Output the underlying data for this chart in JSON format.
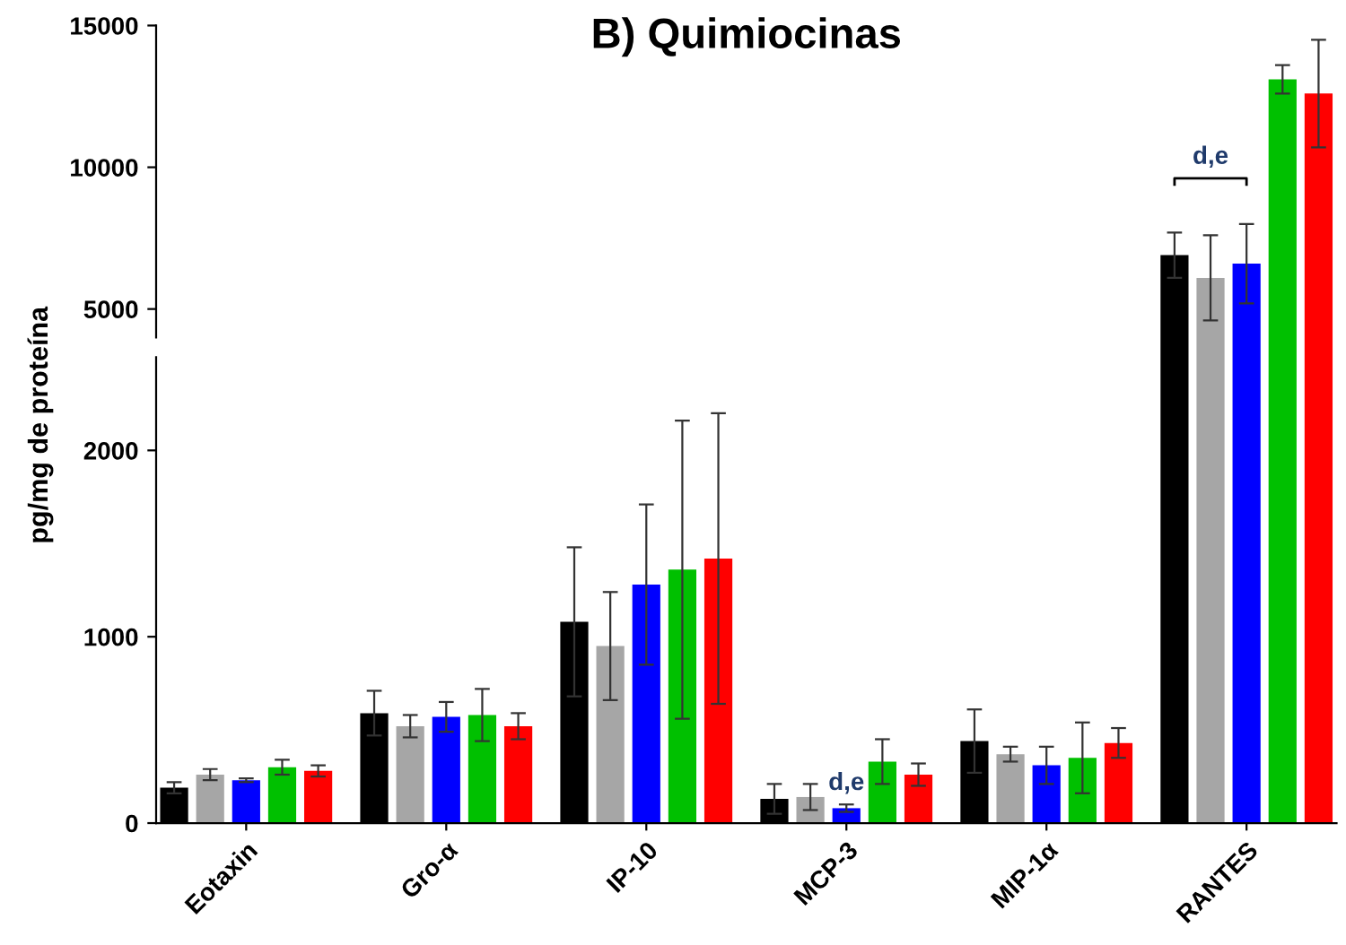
{
  "chart_data": [
    {
      "type": "bar",
      "title": "B) Quimiocinas",
      "ylabel": "pg/mg de proteína",
      "categories": [
        null,
        null,
        null,
        null,
        null,
        null
      ],
      "ylim": [
        4000,
        15000
      ],
      "yticks": [
        5000,
        10000,
        15000
      ],
      "tick_labels": "y",
      "grid": false,
      "legend": false,
      "series": [
        {
          "color": "#000000",
          "values": [
            null,
            null,
            null,
            null,
            null,
            6900
          ],
          "errors": [
            null,
            null,
            null,
            null,
            null,
            800
          ]
        },
        {
          "color": "#a6a6a6",
          "values": [
            null,
            null,
            null,
            null,
            null,
            6100
          ],
          "errors": [
            null,
            null,
            null,
            null,
            null,
            1500
          ]
        },
        {
          "color": "#0000ff",
          "values": [
            null,
            null,
            null,
            null,
            null,
            6600
          ],
          "errors": [
            null,
            null,
            null,
            null,
            null,
            1400
          ]
        },
        {
          "color": "#00c000",
          "values": [
            null,
            null,
            null,
            null,
            null,
            13100
          ],
          "errors": [
            null,
            null,
            null,
            null,
            null,
            500
          ]
        },
        {
          "color": "#ff0000",
          "values": [
            null,
            null,
            null,
            null,
            null,
            12600
          ],
          "errors": [
            null,
            null,
            null,
            null,
            null,
            1900
          ]
        }
      ],
      "annotations": [
        "d,e"
      ]
    },
    {
      "type": "bar",
      "categories": [
        "Eotaxin",
        "Gro-α",
        "IP-10",
        "MCP-3",
        "MIP-1α",
        "RANTES"
      ],
      "ylim": [
        0,
        2500
      ],
      "yticks": [
        0,
        1000,
        2000
      ],
      "grid": false,
      "legend": false,
      "series": [
        {
          "color": "#000000",
          "values": [
            190,
            590,
            1080,
            130,
            440,
            null
          ],
          "errors": [
            30,
            120,
            400,
            80,
            170,
            null
          ]
        },
        {
          "color": "#a6a6a6",
          "values": [
            260,
            520,
            950,
            140,
            370,
            null
          ],
          "errors": [
            30,
            60,
            290,
            70,
            40,
            null
          ]
        },
        {
          "color": "#0000ff",
          "values": [
            230,
            570,
            1280,
            80,
            310,
            null
          ],
          "errors": [
            10,
            80,
            430,
            20,
            100,
            null
          ]
        },
        {
          "color": "#00c000",
          "values": [
            300,
            580,
            1360,
            330,
            350,
            null
          ],
          "errors": [
            40,
            140,
            800,
            120,
            190,
            null
          ]
        },
        {
          "color": "#ff0000",
          "values": [
            280,
            520,
            1420,
            260,
            430,
            null
          ],
          "errors": [
            30,
            70,
            780,
            60,
            80,
            null
          ]
        }
      ],
      "annotations": [
        "d,e"
      ]
    }
  ]
}
